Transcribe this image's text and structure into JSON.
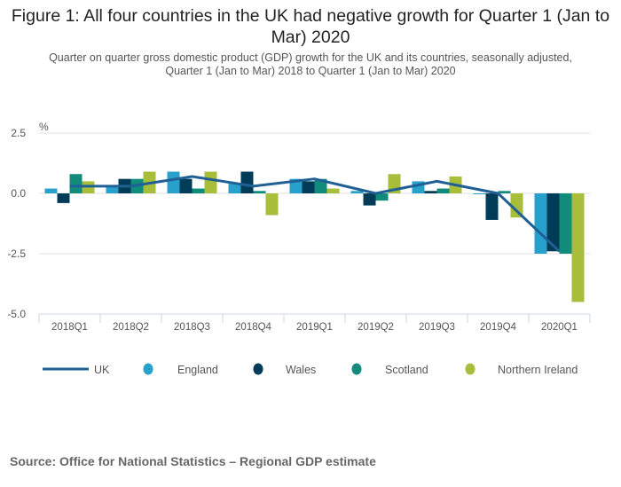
{
  "chart_data": {
    "type": "bar",
    "title": "Figure 1: All four countries in the UK had negative growth for Quarter 1 (Jan to Mar) 2020",
    "subtitle_lines": [
      "Quarter on quarter gross domestic product (GDP) growth for the UK and its countries, seasonally adjusted,",
      "Quarter 1 (Jan to Mar) 2018 to Quarter 1 (Jan to Mar) 2020"
    ],
    "ylabel": "%",
    "xlabel": "",
    "ylim": [
      -5.0,
      2.5
    ],
    "yticks": [
      "2.5",
      "0.0",
      "-2.5",
      "-5.0"
    ],
    "ytick_values": [
      2.5,
      0,
      -2.5,
      -5.0
    ],
    "grid": true,
    "legend_position": "bottom",
    "categories": [
      "2018Q1",
      "2018Q2",
      "2018Q3",
      "2018Q4",
      "2019Q1",
      "2019Q2",
      "2019Q3",
      "2019Q4",
      "2020Q1"
    ],
    "series": [
      {
        "name": "UK",
        "kind": "line",
        "color": "#206095",
        "values": [
          0.3,
          0.3,
          0.7,
          0.3,
          0.6,
          0.0,
          0.5,
          0.0,
          -2.4
        ]
      },
      {
        "name": "England",
        "kind": "bar",
        "color": "#27a0cc",
        "values": [
          0.2,
          0.3,
          0.9,
          0.4,
          0.6,
          0.1,
          0.5,
          0.0,
          -2.5
        ]
      },
      {
        "name": "Wales",
        "kind": "bar",
        "color": "#003c57",
        "values": [
          -0.4,
          0.6,
          0.6,
          0.9,
          0.5,
          -0.5,
          0.1,
          -1.1,
          -2.4
        ]
      },
      {
        "name": "Scotland",
        "kind": "bar",
        "color": "#118c7b",
        "values": [
          0.8,
          0.6,
          0.2,
          0.1,
          0.6,
          -0.3,
          0.2,
          0.1,
          -2.5
        ]
      },
      {
        "name": "Northern Ireland",
        "kind": "bar",
        "color": "#a8bd3a",
        "values": [
          0.5,
          0.9,
          0.9,
          -0.9,
          0.2,
          0.8,
          0.7,
          -1.0,
          -4.5
        ]
      }
    ],
    "source": "Source: Office for National Statistics – Regional GDP estimate"
  }
}
